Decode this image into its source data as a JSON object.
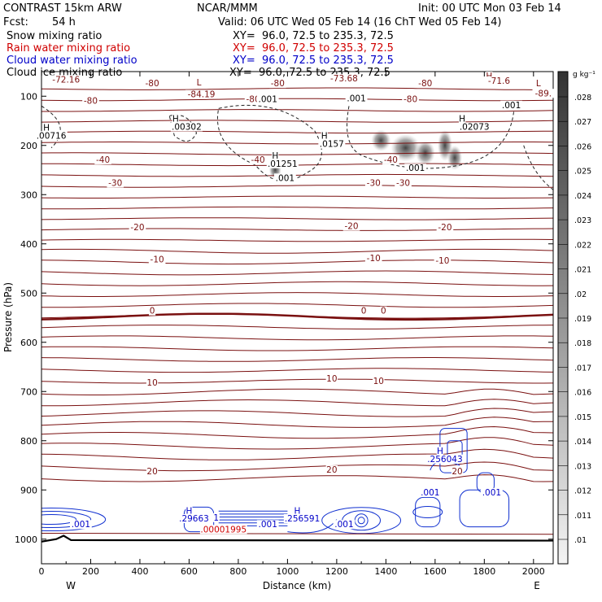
{
  "header": {
    "model": "CONTRAST 15km ARW",
    "center": "NCAR/MMM",
    "init": "Init: 00 UTC Mon 03 Feb 14",
    "fcst_label": "Fcst:",
    "fcst_value": "54 h",
    "valid": "Valid: 06 UTC Wed 05 Feb 14 (16 ChT Wed 05 Feb 14)"
  },
  "fields": [
    {
      "name": "Snow mixing ratio",
      "xy": "XY=  96.0, 72.5 to 235.3, 72.5",
      "color": "#000000"
    },
    {
      "name": "Rain water mixing ratio",
      "xy": "XY=  96.0, 72.5 to 235.3, 72.5",
      "color": "#d00000"
    },
    {
      "name": "Cloud water mixing ratio",
      "xy": "XY=  96.0, 72.5 to 235.3, 72.5",
      "color": "#0000c8"
    },
    {
      "name": "Cloud ice mixing ratio",
      "xy": "XY=  96.0, 72.5 to 235.3, 72.5",
      "color": "#000000"
    }
  ],
  "chart_data": {
    "type": "contour-cross-section",
    "xlabel": "Distance (km)",
    "ylabel": "Pressure (hPa)",
    "xlim": [
      0,
      2080
    ],
    "ylim": [
      1050,
      50
    ],
    "x_ticks": [
      0,
      200,
      400,
      600,
      800,
      1000,
      1200,
      1400,
      1600,
      1800,
      2000
    ],
    "y_ticks": [
      100,
      200,
      300,
      400,
      500,
      600,
      700,
      800,
      900,
      1000
    ],
    "end_labels": {
      "left": "W",
      "right": "E"
    },
    "colorbar": {
      "unit": "g kg⁻¹",
      "labels": [
        ".028",
        ".027",
        ".026",
        ".025",
        ".024",
        ".023",
        ".022",
        ".021",
        ".02",
        ".019",
        ".018",
        ".017",
        ".016",
        ".015",
        ".014",
        ".013",
        ".012",
        ".011",
        ".01"
      ]
    },
    "temperature_labels": [
      {
        "text": "-72.16",
        "x": 100,
        "p": 72
      },
      {
        "text": "-80",
        "x": 450,
        "p": 80
      },
      {
        "text": "L",
        "x": 640,
        "p": 78
      },
      {
        "text": "-80",
        "x": 960,
        "p": 80
      },
      {
        "text": "-73.68",
        "x": 1230,
        "p": 70
      },
      {
        "text": "-80",
        "x": 1560,
        "p": 80
      },
      {
        "text": "H",
        "x": 1820,
        "p": 65
      },
      {
        "text": "-71.6",
        "x": 1860,
        "p": 75
      },
      {
        "text": "L",
        "x": 2020,
        "p": 80
      },
      {
        "text": "-89.",
        "x": 2040,
        "p": 100
      },
      {
        "text": "-84.19",
        "x": 650,
        "p": 102
      },
      {
        "text": "-80",
        "x": 200,
        "p": 115
      },
      {
        "text": "-80",
        "x": 860,
        "p": 112
      },
      {
        "text": "-80",
        "x": 1500,
        "p": 112
      },
      {
        "text": "-40",
        "x": 250,
        "p": 235
      },
      {
        "text": "-40",
        "x": 880,
        "p": 235
      },
      {
        "text": "-40",
        "x": 1420,
        "p": 235
      },
      {
        "text": "-30",
        "x": 300,
        "p": 282
      },
      {
        "text": "-30",
        "x": 1350,
        "p": 282
      },
      {
        "text": "-30",
        "x": 1470,
        "p": 282
      },
      {
        "text": "-20",
        "x": 390,
        "p": 372
      },
      {
        "text": "-20",
        "x": 1260,
        "p": 370
      },
      {
        "text": "-20",
        "x": 1640,
        "p": 372
      },
      {
        "text": "-10",
        "x": 470,
        "p": 438
      },
      {
        "text": "-10",
        "x": 1350,
        "p": 435
      },
      {
        "text": "-10",
        "x": 1630,
        "p": 440
      },
      {
        "text": "0",
        "x": 450,
        "p": 542
      },
      {
        "text": "0",
        "x": 1310,
        "p": 542
      },
      {
        "text": "0",
        "x": 1390,
        "p": 542
      },
      {
        "text": "10",
        "x": 450,
        "p": 688
      },
      {
        "text": "10",
        "x": 1180,
        "p": 680
      },
      {
        "text": "10",
        "x": 1370,
        "p": 685
      },
      {
        "text": "20",
        "x": 450,
        "p": 868
      },
      {
        "text": "20",
        "x": 1180,
        "p": 865
      },
      {
        "text": "20",
        "x": 1690,
        "p": 868
      }
    ],
    "ice_labels": [
      {
        "text": ".001",
        "x": 920,
        "p": 112
      },
      {
        "text": ".001",
        "x": 1280,
        "p": 110
      },
      {
        "text": ".001",
        "x": 1910,
        "p": 124
      },
      {
        "text": "H",
        "x": 20,
        "p": 170
      },
      {
        "text": ".00716",
        "x": 40,
        "p": 186
      },
      {
        "text": "H",
        "x": 545,
        "p": 152
      },
      {
        "text": ".00302",
        "x": 590,
        "p": 168
      },
      {
        "text": "H",
        "x": 1150,
        "p": 186
      },
      {
        "text": ".0157",
        "x": 1180,
        "p": 203
      },
      {
        "text": "H",
        "x": 1710,
        "p": 152
      },
      {
        "text": ".02073",
        "x": 1760,
        "p": 168
      },
      {
        "text": "H",
        "x": 950,
        "p": 227
      },
      {
        "text": ".01251",
        "x": 980,
        "p": 243
      },
      {
        "text": ".001",
        "x": 1520,
        "p": 252
      },
      {
        "text": ".001",
        "x": 990,
        "p": 272
      }
    ],
    "cloud_water_labels": [
      {
        "text": "H",
        "x": 1620,
        "p": 827
      },
      {
        "text": ".256043",
        "x": 1640,
        "p": 843
      },
      {
        "text": ".001",
        "x": 1580,
        "p": 911
      },
      {
        "text": ".001",
        "x": 1830,
        "p": 911
      },
      {
        "text": "H",
        "x": 600,
        "p": 948
      },
      {
        "text": ".29663",
        "x": 620,
        "p": 964
      },
      {
        "text": "1",
        "x": 710,
        "p": 962
      },
      {
        "text": "H",
        "x": 1040,
        "p": 948
      },
      {
        "text": ".256591",
        "x": 1060,
        "p": 964
      },
      {
        "text": ".001",
        "x": 920,
        "p": 976
      },
      {
        "text": ".001",
        "x": 1230,
        "p": 976
      },
      {
        "text": ".001",
        "x": 160,
        "p": 976
      }
    ],
    "rain_labels": [
      {
        "text": ".00001995",
        "x": 740,
        "p": 986
      }
    ]
  }
}
